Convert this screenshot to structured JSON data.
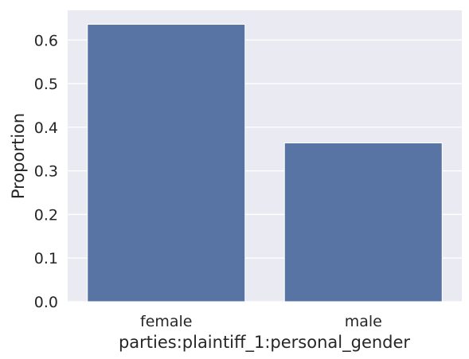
{
  "chart_data": {
    "type": "bar",
    "categories": [
      "female",
      "male"
    ],
    "values": [
      0.636,
      0.364
    ],
    "xlabel": "parties:plaintiff_1:personal_gender",
    "ylabel": "Proportion",
    "ylim": [
      0,
      0.668
    ],
    "yticks": [
      "0.0",
      "0.1",
      "0.2",
      "0.3",
      "0.4",
      "0.5",
      "0.6"
    ],
    "ytick_values": [
      0,
      0.1,
      0.2,
      0.3,
      0.4,
      0.5,
      0.6
    ],
    "grid": true,
    "legend": "none",
    "colors": {
      "bar": "#5874a4",
      "background": "#eaeaf2",
      "grid": "#ffffff",
      "text": "#262626"
    }
  }
}
